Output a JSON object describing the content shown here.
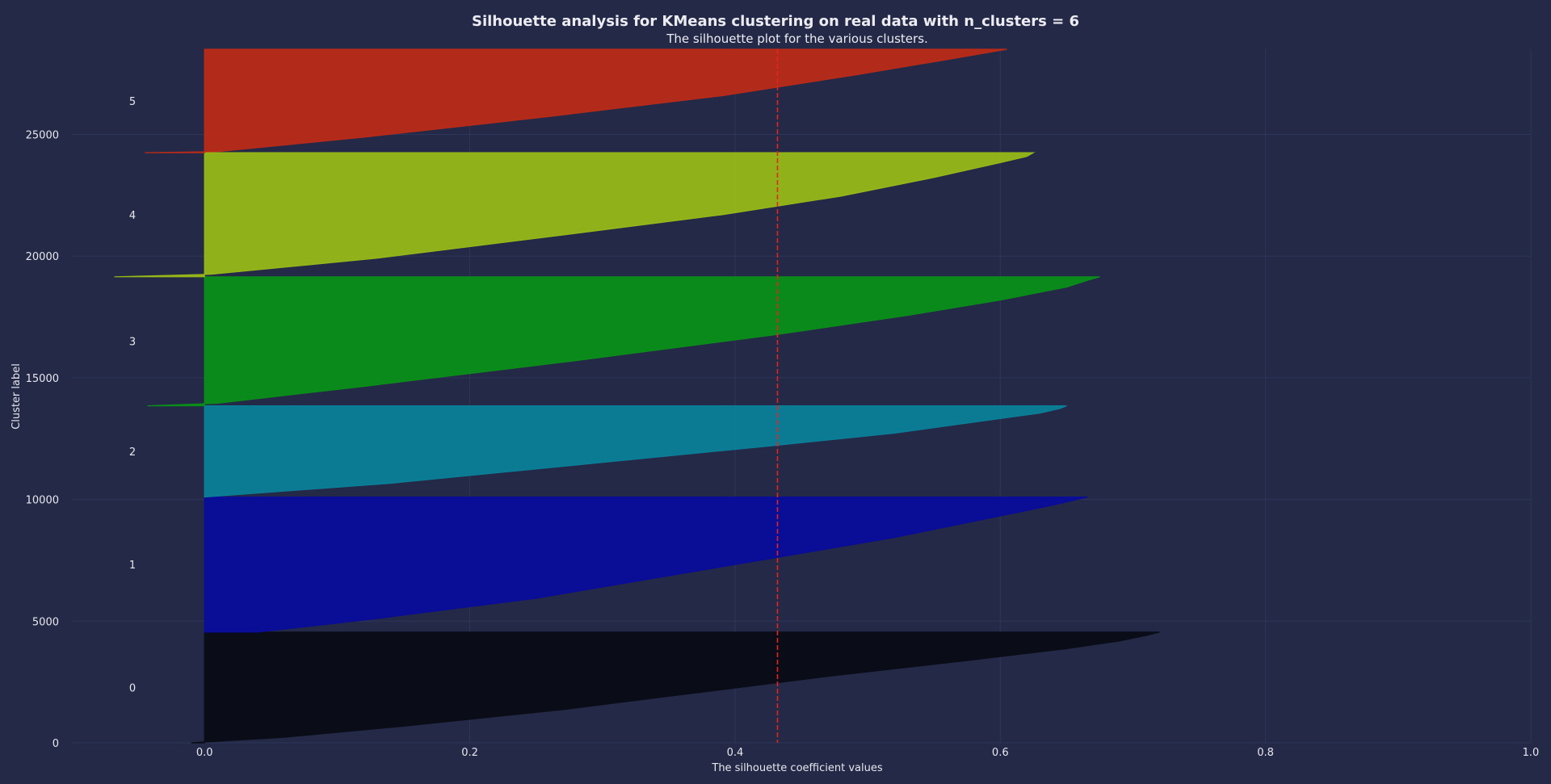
{
  "chart_data": {
    "type": "area",
    "title": "Silhouette analysis for KMeans clustering on real data with n_clusters = 6",
    "subtitle": "The silhouette plot for the various clusters.",
    "xlabel": "The silhouette coefficient values",
    "ylabel": "Cluster label",
    "xlim": [
      -0.1,
      1.0
    ],
    "ylim": [
      0,
      28500
    ],
    "x_ticks": [
      "0.0",
      "0.2",
      "0.4",
      "0.6",
      "0.8",
      "1.0"
    ],
    "y_ticks": [
      "0",
      "5000",
      "10000",
      "15000",
      "20000",
      "25000"
    ],
    "grid": true,
    "average_silhouette_score": 0.432,
    "colors": {
      "background": "#232946",
      "grid": "#2e365a",
      "text": "#e8e8ee",
      "average_line": "#e8231b"
    },
    "series": [
      {
        "name": "0",
        "color": "#0a0c16",
        "y_start": 0,
        "y_end": 4550,
        "profile": [
          [
            0,
            -0.01
          ],
          [
            0.05,
            0.06
          ],
          [
            0.15,
            0.15
          ],
          [
            0.3,
            0.27
          ],
          [
            0.45,
            0.37
          ],
          [
            0.6,
            0.47
          ],
          [
            0.75,
            0.58
          ],
          [
            0.85,
            0.65
          ],
          [
            0.92,
            0.69
          ],
          [
            0.97,
            0.71
          ],
          [
            1.0,
            0.72
          ]
        ]
      },
      {
        "name": "1",
        "color": "#0a0c9a",
        "y_start": 4550,
        "y_end": 10100,
        "profile": [
          [
            0,
            0.04
          ],
          [
            0.1,
            0.13
          ],
          [
            0.25,
            0.25
          ],
          [
            0.4,
            0.34
          ],
          [
            0.55,
            0.43
          ],
          [
            0.7,
            0.52
          ],
          [
            0.8,
            0.57
          ],
          [
            0.88,
            0.61
          ],
          [
            0.94,
            0.64
          ],
          [
            1.0,
            0.666
          ]
        ]
      },
      {
        "name": "2",
        "color": "#0b7f99",
        "y_start": 10100,
        "y_end": 13850,
        "profile": [
          [
            0,
            0.0
          ],
          [
            0.15,
            0.14
          ],
          [
            0.35,
            0.28
          ],
          [
            0.55,
            0.42
          ],
          [
            0.7,
            0.52
          ],
          [
            0.82,
            0.58
          ],
          [
            0.92,
            0.63
          ],
          [
            0.97,
            0.645
          ],
          [
            1.0,
            0.65
          ]
        ]
      },
      {
        "name": "3",
        "color": "#0a8f18",
        "y_start": 13850,
        "y_end": 19150,
        "profile": [
          [
            0,
            -0.043
          ],
          [
            0.02,
            0.01
          ],
          [
            0.15,
            0.12
          ],
          [
            0.35,
            0.28
          ],
          [
            0.55,
            0.43
          ],
          [
            0.7,
            0.53
          ],
          [
            0.82,
            0.6
          ],
          [
            0.92,
            0.65
          ],
          [
            0.97,
            0.665
          ],
          [
            1.0,
            0.675
          ]
        ]
      },
      {
        "name": "4",
        "color": "#98b818",
        "y_start": 19150,
        "y_end": 24250,
        "profile": [
          [
            0,
            -0.068
          ],
          [
            0.02,
            0.005
          ],
          [
            0.15,
            0.13
          ],
          [
            0.35,
            0.28
          ],
          [
            0.5,
            0.39
          ],
          [
            0.65,
            0.48
          ],
          [
            0.8,
            0.55
          ],
          [
            0.92,
            0.6
          ],
          [
            0.97,
            0.62
          ],
          [
            1.0,
            0.625
          ]
        ]
      },
      {
        "name": "5",
        "color": "#bb2a18",
        "y_start": 24250,
        "y_end": 28500,
        "profile": [
          [
            0,
            -0.045
          ],
          [
            0.01,
            0.01
          ],
          [
            0.15,
            0.12
          ],
          [
            0.35,
            0.26
          ],
          [
            0.55,
            0.39
          ],
          [
            0.75,
            0.49
          ],
          [
            0.9,
            0.56
          ],
          [
            1.0,
            0.605
          ]
        ]
      }
    ]
  }
}
